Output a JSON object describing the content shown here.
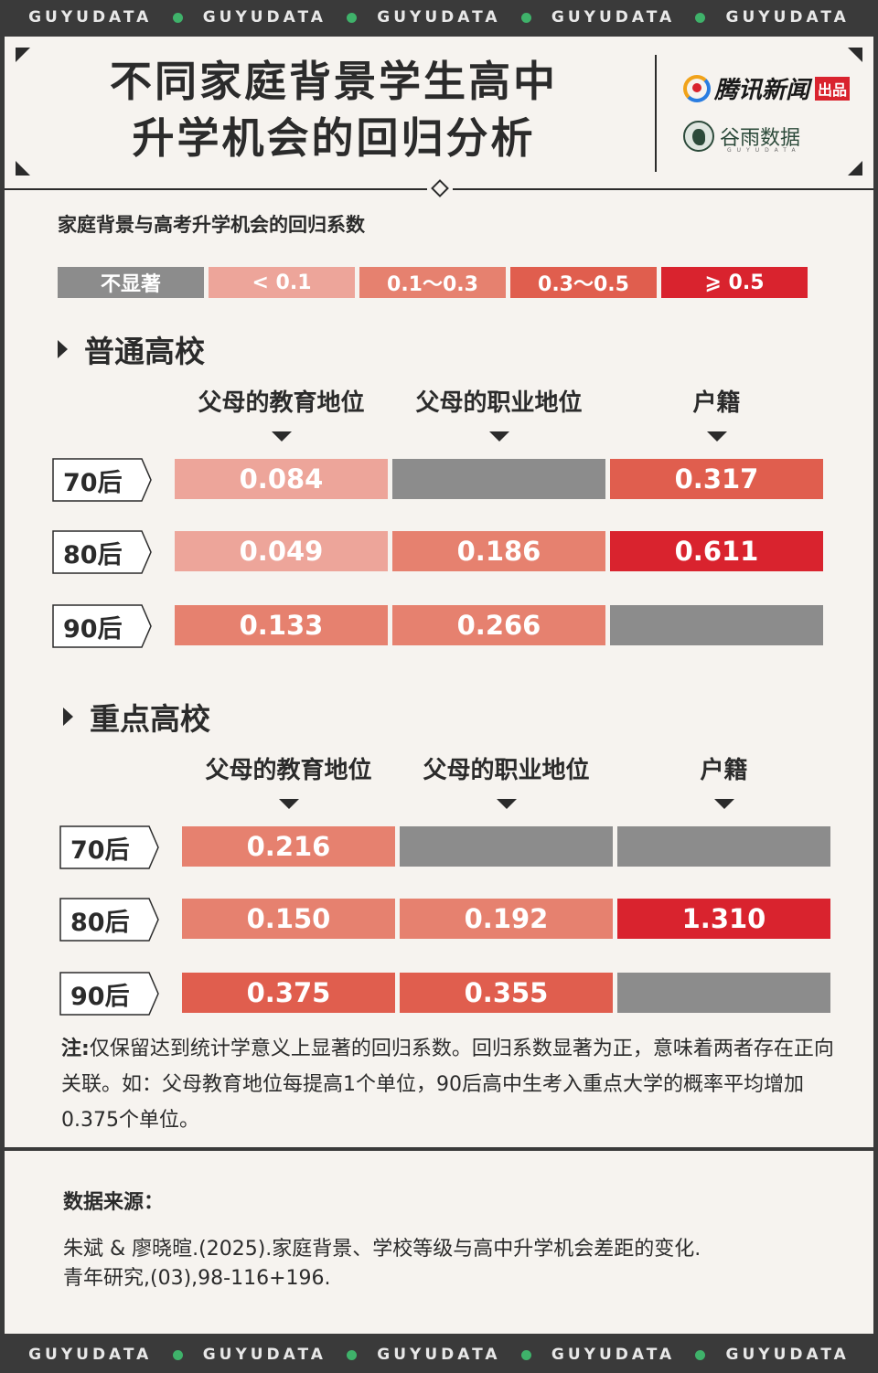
{
  "banner": {
    "word": "GUYUDATA",
    "dot_color": "#3fb26a"
  },
  "header": {
    "title_line1": "不同家庭背景学生高中",
    "title_line2": "升学机会的回归分析",
    "logo_tencent": "腾讯新闻",
    "logo_tencent_tag": "出品",
    "logo_guyu": "谷雨数据",
    "logo_guyu_sub": "GUYUDATA"
  },
  "chart_subtitle": "家庭背景与高考升学机会的回归系数",
  "legend": [
    {
      "label": "不显著",
      "color": "#8c8c8c"
    },
    {
      "label": "< 0.1",
      "color": "#eda59a"
    },
    {
      "label": "0.1～0.3",
      "color": "#e6816f"
    },
    {
      "label": "0.3～0.5",
      "color": "#e05e4e"
    },
    {
      "label": "⩾ 0.5",
      "color": "#d9232e"
    }
  ],
  "chart_data": [
    {
      "type": "table",
      "title": "普通高校",
      "columns": [
        "父母的教育地位",
        "父母的职业地位",
        "户籍"
      ],
      "rows": [
        "70后",
        "80后",
        "90后"
      ],
      "values": [
        [
          "0.084",
          "",
          "0.317"
        ],
        [
          "0.049",
          "0.186",
          "0.611"
        ],
        [
          "0.133",
          "0.266",
          ""
        ]
      ],
      "empty_meaning": "不显著"
    },
    {
      "type": "table",
      "title": "重点高校",
      "columns": [
        "父母的教育地位",
        "父母的职业地位",
        "户籍"
      ],
      "rows": [
        "70后",
        "80后",
        "90后"
      ],
      "values": [
        [
          "0.216",
          "",
          ""
        ],
        [
          "0.150",
          "0.192",
          "1.310"
        ],
        [
          "0.375",
          "0.355",
          ""
        ]
      ],
      "empty_meaning": "不显著"
    }
  ],
  "note": {
    "label": "注:",
    "text": "仅保留达到统计学意义上显著的回归系数。回归系数显著为正，意味着两者存在正向关联。如：父母教育地位每提高1个单位，90后高中生考入重点大学的概率平均增加0.375个单位。"
  },
  "source": {
    "title": "数据来源：",
    "line1": "朱斌 & 廖晓暄.(2025).家庭背景、学校等级与高中升学机会差距的变化.",
    "line2": "青年研究,(03),98-116+196."
  }
}
